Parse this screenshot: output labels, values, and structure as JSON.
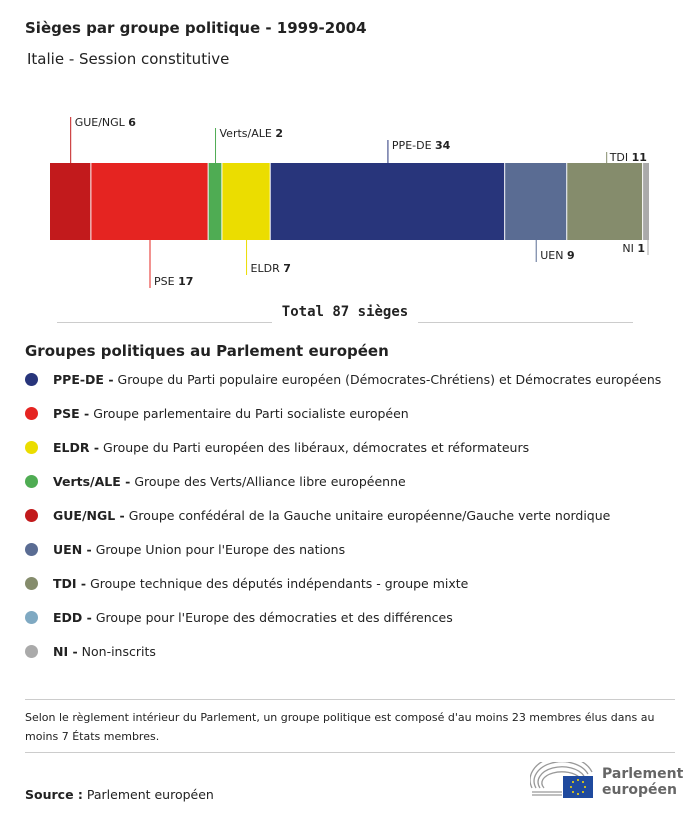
{
  "title": "Sièges par groupe politique - 1999-2004",
  "subtitle": "Italie - Session constitutive",
  "chart_data": {
    "type": "bar",
    "orientation": "horizontal-stacked",
    "total_label": "Total 87 sièges",
    "segments": [
      {
        "name": "GUE/NGL",
        "value": 6,
        "color": "#c21a1c",
        "label_pos": "top"
      },
      {
        "name": "PSE",
        "value": 17,
        "color": "#e52421",
        "label_pos": "bottom"
      },
      {
        "name": "Verts/ALE",
        "value": 2,
        "color": "#4fac53",
        "label_pos": "top"
      },
      {
        "name": "ELDR",
        "value": 7,
        "color": "#ebdd00",
        "label_pos": "bottom"
      },
      {
        "name": "PPE-DE",
        "value": 34,
        "color": "#28357b",
        "label_pos": "top"
      },
      {
        "name": "UEN",
        "value": 9,
        "color": "#5a6c93",
        "label_pos": "bottom"
      },
      {
        "name": "TDI",
        "value": 11,
        "color": "#858c6c",
        "label_pos": "top"
      },
      {
        "name": "NI",
        "value": 1,
        "color": "#aaaaaa",
        "label_pos": "bottom"
      }
    ]
  },
  "legend": {
    "title": "Groupes politiques au Parlement européen",
    "items": [
      {
        "abbr": "PPE-DE -",
        "desc": "Groupe du Parti populaire européen (Démocrates-Chrétiens) et Démocrates européens",
        "color": "#28357b"
      },
      {
        "abbr": "PSE -",
        "desc": "Groupe parlementaire du Parti socialiste européen",
        "color": "#e52421"
      },
      {
        "abbr": "ELDR -",
        "desc": "Groupe du Parti européen des libéraux, démocrates et réformateurs",
        "color": "#ebdd00"
      },
      {
        "abbr": "Verts/ALE -",
        "desc": "Groupe des Verts/Alliance libre européenne",
        "color": "#4fac53"
      },
      {
        "abbr": "GUE/NGL -",
        "desc": "Groupe confédéral de la Gauche unitaire européenne/Gauche verte nordique",
        "color": "#c21a1c"
      },
      {
        "abbr": "UEN -",
        "desc": "Groupe Union pour l'Europe des nations",
        "color": "#5a6c93"
      },
      {
        "abbr": "TDI -",
        "desc": "Groupe technique des députés indépendants - groupe mixte",
        "color": "#858c6c"
      },
      {
        "abbr": "EDD -",
        "desc": "Groupe pour l'Europe des démocraties et des différences",
        "color": "#7fa9c2"
      },
      {
        "abbr": "NI -",
        "desc": "Non-inscrits",
        "color": "#aaaaaa"
      }
    ]
  },
  "note": "Selon le règlement intérieur du Parlement, un groupe politique est composé d'au moins 23 membres élus dans au moins 7 États membres.",
  "source": {
    "label": "Source :",
    "value": "Parlement européen"
  },
  "logo": {
    "text1": "Parlement",
    "text2": "européen"
  }
}
